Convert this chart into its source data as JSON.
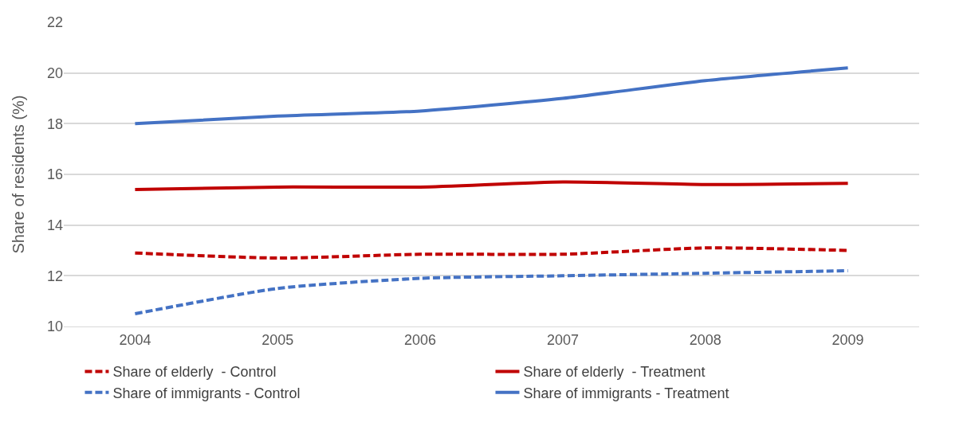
{
  "chart_data": {
    "type": "line",
    "ylabel": "Share of residents (%)",
    "categories": [
      "2004",
      "2005",
      "2006",
      "2007",
      "2008",
      "2009"
    ],
    "series": [
      {
        "name": "Share of elderly  - Control",
        "color": "#c00000",
        "line_style": "dashed",
        "values": [
          12.9,
          12.7,
          12.85,
          12.85,
          13.1,
          13.0
        ]
      },
      {
        "name": "Share of elderly  - Treatment",
        "color": "#c00000",
        "line_style": "solid",
        "values": [
          15.4,
          15.5,
          15.5,
          15.7,
          15.6,
          15.65
        ]
      },
      {
        "name": "Share of immigrants - Control",
        "color": "#4472c4",
        "line_style": "dashed",
        "values": [
          10.5,
          11.5,
          11.9,
          12.0,
          12.1,
          12.2
        ]
      },
      {
        "name": "Share of immigrants - Treatment",
        "color": "#4472c4",
        "line_style": "solid",
        "values": [
          18.0,
          18.3,
          18.5,
          19.0,
          19.7,
          20.2
        ]
      }
    ],
    "ylim": [
      10,
      22
    ],
    "yticks": [
      10,
      12,
      14,
      16,
      18,
      20,
      22
    ],
    "grid": "y",
    "legend": "bottom",
    "marker": "none"
  }
}
